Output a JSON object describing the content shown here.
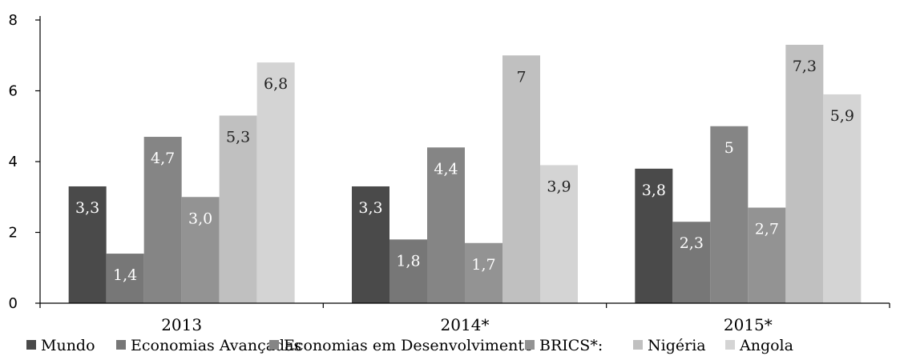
{
  "chart_data": {
    "type": "bar",
    "categories": [
      "2013",
      "2014*",
      "2015*"
    ],
    "series": [
      {
        "name": "Mundo",
        "values": [
          3.3,
          3.3,
          3.8
        ],
        "labels": [
          "3,3",
          "3,3",
          "3,8"
        ],
        "color": "#4a4a4a"
      },
      {
        "name": "Economias Avançadas",
        "values": [
          1.4,
          1.8,
          2.3
        ],
        "labels": [
          "1,4",
          "1,8",
          "2,3"
        ],
        "color": "#777777"
      },
      {
        "name": "Economias em Desenvolvimento",
        "values": [
          4.7,
          4.4,
          5.0
        ],
        "labels": [
          "4,7",
          "4,4",
          "5"
        ],
        "color": "#858585"
      },
      {
        "name": "BRICS*:",
        "values": [
          3.0,
          1.7,
          2.7
        ],
        "labels": [
          "3,0",
          "1,7",
          "2,7"
        ],
        "color": "#939393"
      },
      {
        "name": "Nigéria",
        "values": [
          5.3,
          7.0,
          7.3
        ],
        "labels": [
          "5,3",
          "7",
          "7,3"
        ],
        "color": "#c0c0c0"
      },
      {
        "name": "Angola",
        "values": [
          6.8,
          3.9,
          5.9
        ],
        "labels": [
          "6,8",
          "3,9",
          "5,9"
        ],
        "color": "#d4d4d4"
      }
    ],
    "yticks": [
      "0",
      "2",
      "4",
      "6",
      "8"
    ],
    "ylim": [
      0,
      8
    ],
    "grid": false,
    "legend_position": "bottom",
    "title": "",
    "xlabel": "",
    "ylabel": ""
  }
}
